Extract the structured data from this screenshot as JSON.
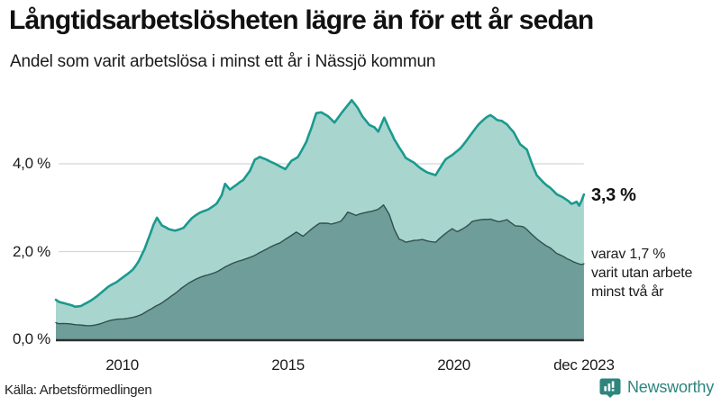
{
  "header": {
    "title": "Långtidsarbetslösheten lägre än för ett år sedan",
    "subtitle": "Andel som varit arbetslösa i minst ett år i Nässjö kommun"
  },
  "annotations": {
    "total_label": "3,3 %",
    "sub_line1": "varav 1,7 %",
    "sub_line2": "varit utan arbete",
    "sub_line3": "minst två år"
  },
  "footer": {
    "source": "Källa: Arbetsförmedlingen",
    "brand": "Newsworthy"
  },
  "colors": {
    "line_total": "#1b9a8e",
    "fill_total": "#a9d5cf",
    "line_sub": "#31504c",
    "fill_sub": "#6f9d99",
    "gridline": "#d2d7d9",
    "axis_line": "#2f2f2f",
    "brand_teal": "#2e857e",
    "text": "#1b1b1b"
  },
  "chart_data": {
    "type": "area",
    "title": "Långtidsarbetslösheten lägre än för ett år sedan",
    "subtitle": "Andel som varit arbetslösa i minst ett år i Nässjö kommun",
    "unit": "%",
    "x_range": [
      2008.0,
      2023.92
    ],
    "ylim": [
      0,
      5.7
    ],
    "grid": "horizontal",
    "y_ticks": [
      {
        "value": 0.0,
        "label": "0,0 %"
      },
      {
        "value": 2.0,
        "label": "2,0 %"
      },
      {
        "value": 4.0,
        "label": "4,0 %"
      }
    ],
    "x_ticks": [
      {
        "year": 2010.0,
        "label": "2010"
      },
      {
        "year": 2015.0,
        "label": "2015"
      },
      {
        "year": 2020.0,
        "label": "2020"
      },
      {
        "year": 2023.92,
        "label": "dec 2023"
      }
    ],
    "series": [
      {
        "name": "Arbetslösa minst ett år",
        "end_value": 3.3,
        "points": [
          [
            2008.0,
            0.9
          ],
          [
            2008.17,
            0.84
          ],
          [
            2008.33,
            0.79
          ],
          [
            2008.58,
            0.72
          ],
          [
            2008.75,
            0.75
          ],
          [
            2008.92,
            0.84
          ],
          [
            2009.08,
            0.92
          ],
          [
            2009.33,
            1.05
          ],
          [
            2009.58,
            1.18
          ],
          [
            2009.83,
            1.28
          ],
          [
            2010.08,
            1.45
          ],
          [
            2010.33,
            1.62
          ],
          [
            2010.5,
            1.8
          ],
          [
            2010.67,
            2.05
          ],
          [
            2010.83,
            2.35
          ],
          [
            2010.95,
            2.6
          ],
          [
            2011.05,
            2.75
          ],
          [
            2011.2,
            2.58
          ],
          [
            2011.4,
            2.53
          ],
          [
            2011.6,
            2.5
          ],
          [
            2011.85,
            2.55
          ],
          [
            2012.1,
            2.74
          ],
          [
            2012.35,
            2.87
          ],
          [
            2012.6,
            2.97
          ],
          [
            2012.85,
            3.12
          ],
          [
            2013.0,
            3.3
          ],
          [
            2013.1,
            3.55
          ],
          [
            2013.25,
            3.4
          ],
          [
            2013.45,
            3.5
          ],
          [
            2013.65,
            3.62
          ],
          [
            2013.85,
            3.85
          ],
          [
            2014.0,
            4.12
          ],
          [
            2014.15,
            4.18
          ],
          [
            2014.35,
            4.1
          ],
          [
            2014.55,
            4.0
          ],
          [
            2014.75,
            3.92
          ],
          [
            2014.92,
            3.87
          ],
          [
            2015.1,
            4.08
          ],
          [
            2015.3,
            4.18
          ],
          [
            2015.55,
            4.5
          ],
          [
            2015.7,
            4.8
          ],
          [
            2015.85,
            5.13
          ],
          [
            2016.0,
            5.15
          ],
          [
            2016.2,
            5.08
          ],
          [
            2016.4,
            4.96
          ],
          [
            2016.6,
            5.17
          ],
          [
            2016.75,
            5.3
          ],
          [
            2016.92,
            5.44
          ],
          [
            2017.1,
            5.25
          ],
          [
            2017.25,
            5.05
          ],
          [
            2017.45,
            4.88
          ],
          [
            2017.6,
            4.85
          ],
          [
            2017.72,
            4.76
          ],
          [
            2017.9,
            5.07
          ],
          [
            2018.05,
            4.8
          ],
          [
            2018.2,
            4.55
          ],
          [
            2018.35,
            4.35
          ],
          [
            2018.55,
            4.12
          ],
          [
            2018.8,
            4.04
          ],
          [
            2019.0,
            3.92
          ],
          [
            2019.2,
            3.82
          ],
          [
            2019.45,
            3.73
          ],
          [
            2019.6,
            3.9
          ],
          [
            2019.75,
            4.08
          ],
          [
            2019.95,
            4.2
          ],
          [
            2020.2,
            4.38
          ],
          [
            2020.5,
            4.66
          ],
          [
            2020.75,
            4.88
          ],
          [
            2021.0,
            5.05
          ],
          [
            2021.1,
            5.1
          ],
          [
            2021.3,
            5.02
          ],
          [
            2021.45,
            5.0
          ],
          [
            2021.6,
            4.92
          ],
          [
            2021.8,
            4.72
          ],
          [
            2022.0,
            4.42
          ],
          [
            2022.2,
            4.3
          ],
          [
            2022.35,
            4.0
          ],
          [
            2022.5,
            3.75
          ],
          [
            2022.7,
            3.6
          ],
          [
            2022.9,
            3.47
          ],
          [
            2023.1,
            3.3
          ],
          [
            2023.35,
            3.18
          ],
          [
            2023.55,
            3.08
          ],
          [
            2023.7,
            3.14
          ],
          [
            2023.78,
            3.06
          ],
          [
            2023.92,
            3.3
          ]
        ]
      },
      {
        "name": "Varav utan arbete minst två år",
        "end_value": 1.7,
        "points": [
          [
            2008.0,
            0.38
          ],
          [
            2008.3,
            0.34
          ],
          [
            2008.6,
            0.31
          ],
          [
            2009.0,
            0.33
          ],
          [
            2009.4,
            0.37
          ],
          [
            2009.8,
            0.43
          ],
          [
            2010.2,
            0.5
          ],
          [
            2010.6,
            0.58
          ],
          [
            2010.9,
            0.68
          ],
          [
            2011.2,
            0.82
          ],
          [
            2011.5,
            1.02
          ],
          [
            2011.8,
            1.18
          ],
          [
            2012.1,
            1.3
          ],
          [
            2012.5,
            1.45
          ],
          [
            2012.9,
            1.58
          ],
          [
            2013.2,
            1.68
          ],
          [
            2013.6,
            1.78
          ],
          [
            2013.9,
            1.9
          ],
          [
            2014.2,
            2.02
          ],
          [
            2014.5,
            2.1
          ],
          [
            2014.75,
            2.17
          ],
          [
            2015.0,
            2.32
          ],
          [
            2015.25,
            2.47
          ],
          [
            2015.45,
            2.37
          ],
          [
            2015.7,
            2.5
          ],
          [
            2015.95,
            2.62
          ],
          [
            2016.3,
            2.64
          ],
          [
            2016.6,
            2.72
          ],
          [
            2016.8,
            2.9
          ],
          [
            2017.05,
            2.8
          ],
          [
            2017.3,
            2.87
          ],
          [
            2017.5,
            2.92
          ],
          [
            2017.7,
            2.98
          ],
          [
            2017.88,
            3.08
          ],
          [
            2018.05,
            2.85
          ],
          [
            2018.2,
            2.5
          ],
          [
            2018.35,
            2.26
          ],
          [
            2018.55,
            2.2
          ],
          [
            2018.8,
            2.27
          ],
          [
            2019.05,
            2.3
          ],
          [
            2019.25,
            2.24
          ],
          [
            2019.45,
            2.2
          ],
          [
            2019.7,
            2.36
          ],
          [
            2019.95,
            2.52
          ],
          [
            2020.1,
            2.47
          ],
          [
            2020.35,
            2.58
          ],
          [
            2020.55,
            2.68
          ],
          [
            2020.8,
            2.7
          ],
          [
            2021.1,
            2.73
          ],
          [
            2021.35,
            2.7
          ],
          [
            2021.6,
            2.75
          ],
          [
            2021.85,
            2.58
          ],
          [
            2022.1,
            2.54
          ],
          [
            2022.3,
            2.42
          ],
          [
            2022.5,
            2.3
          ],
          [
            2022.7,
            2.2
          ],
          [
            2022.9,
            2.1
          ],
          [
            2023.1,
            1.95
          ],
          [
            2023.4,
            1.82
          ],
          [
            2023.6,
            1.76
          ],
          [
            2023.78,
            1.73
          ],
          [
            2023.92,
            1.72
          ]
        ]
      }
    ],
    "legend_position": "none"
  }
}
